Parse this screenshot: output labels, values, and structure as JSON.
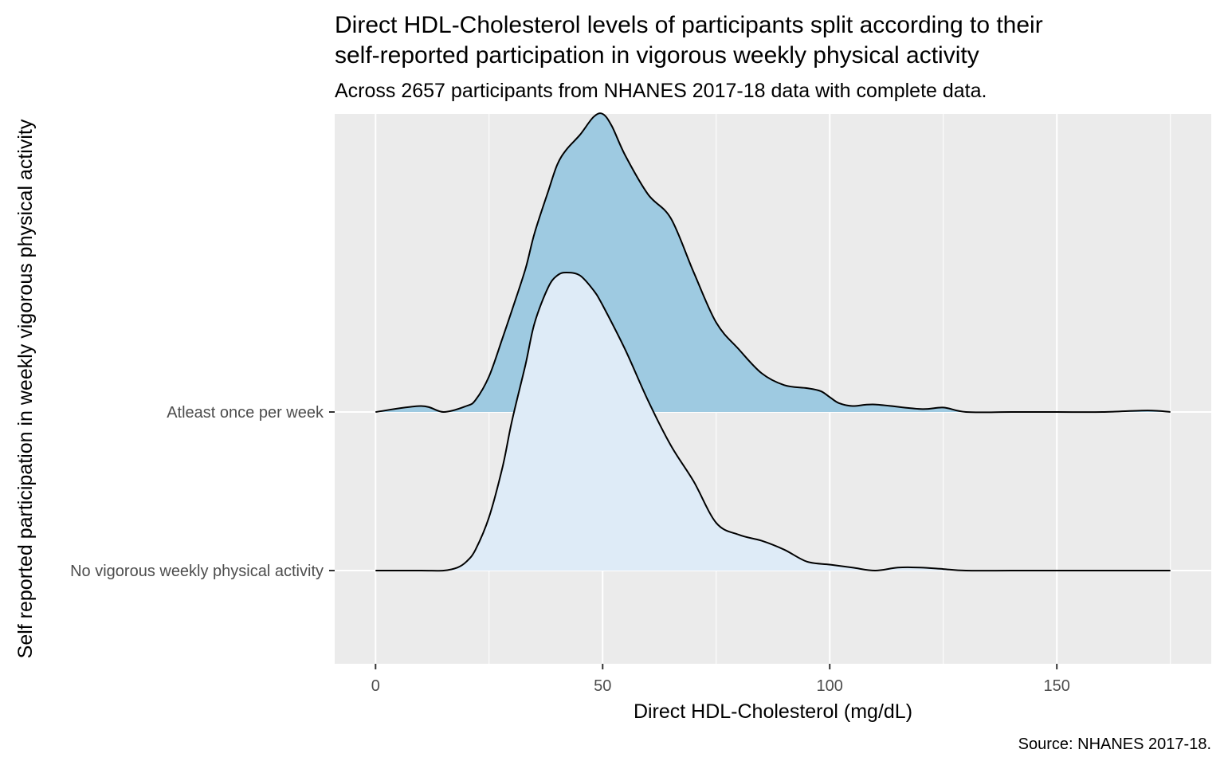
{
  "chart_data": {
    "type": "ridgeline-density",
    "title_lines": [
      "Direct HDL-Cholesterol levels of participants split according to their",
      "self-reported participation in vigorous weekly physical activity"
    ],
    "subtitle": "Across 2657 participants from NHANES 2017-18 data with complete data.",
    "caption": "Source: NHANES 2017-18.",
    "xlabel": "Direct HDL-Cholesterol (mg/dL)",
    "ylabel": "Self reported participation in weekly vigorous physical activity",
    "xlim": [
      -9,
      184
    ],
    "x_ticks": [
      0,
      50,
      100,
      150
    ],
    "x_tick_labels": [
      "0",
      "50",
      "100",
      "150"
    ],
    "grid": true,
    "legend": "none",
    "series": [
      {
        "name": "Atleast once per week",
        "fill": "#9ecae1",
        "line": "#000000",
        "x": [
          0,
          10,
          15,
          20,
          22,
          25,
          28,
          30,
          33,
          35,
          38,
          40,
          42,
          45,
          48,
          50,
          52,
          55,
          60,
          65,
          70,
          75,
          80,
          85,
          90,
          95,
          98,
          100,
          102,
          105,
          110,
          120,
          125,
          130,
          140,
          150,
          160,
          170,
          175
        ],
        "density": [
          0.0,
          0.02,
          0.0,
          0.02,
          0.04,
          0.12,
          0.25,
          0.34,
          0.48,
          0.6,
          0.74,
          0.83,
          0.88,
          0.93,
          0.99,
          1.0,
          0.96,
          0.86,
          0.73,
          0.65,
          0.47,
          0.3,
          0.21,
          0.13,
          0.09,
          0.08,
          0.07,
          0.05,
          0.03,
          0.02,
          0.025,
          0.01,
          0.015,
          0.0,
          0.0,
          0.0,
          0.0,
          0.005,
          0.0
        ]
      },
      {
        "name": "No vigorous weekly physical activity",
        "fill": "#deebf7",
        "line": "#000000",
        "x": [
          0,
          10,
          15,
          18,
          20,
          22,
          25,
          28,
          30,
          33,
          35,
          38,
          40,
          42,
          45,
          48,
          50,
          55,
          60,
          65,
          70,
          75,
          80,
          85,
          90,
          95,
          100,
          105,
          110,
          115,
          120,
          125,
          130,
          140,
          150,
          160,
          175
        ],
        "density": [
          0.0,
          0.0,
          0.0,
          0.01,
          0.03,
          0.07,
          0.18,
          0.35,
          0.5,
          0.69,
          0.83,
          0.95,
          0.99,
          1.0,
          0.99,
          0.94,
          0.89,
          0.74,
          0.57,
          0.42,
          0.3,
          0.16,
          0.12,
          0.1,
          0.07,
          0.03,
          0.02,
          0.01,
          0.0,
          0.01,
          0.01,
          0.005,
          0.0,
          0.0,
          0.0,
          0.0,
          0.0
        ]
      }
    ]
  }
}
